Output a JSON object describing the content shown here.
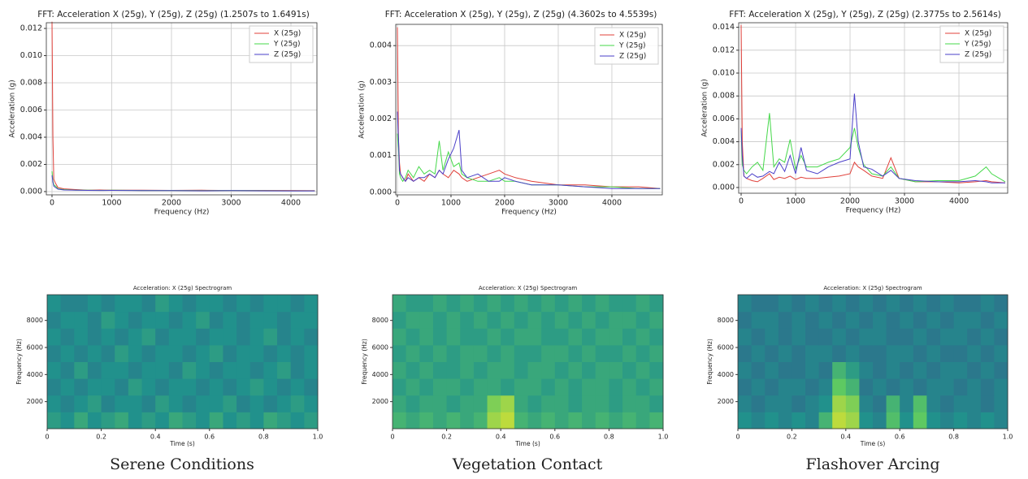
{
  "chart_data": [
    {
      "type": "line",
      "title": "FFT: Acceleration X (25g), Y (25g), Z (25g) (1.2507s to 1.6491s)",
      "xlabel": "Frequency (Hz)",
      "ylabel": "Acceleration (g)",
      "x": [
        0,
        15,
        30,
        60,
        100,
        200,
        400,
        600,
        800,
        1000,
        1500,
        2000,
        2500,
        3000,
        3500,
        4000,
        4400
      ],
      "series": [
        {
          "name": "X (25g)",
          "color": "#e0403a",
          "values": [
            0.0125,
            0.004,
            0.0009,
            0.0006,
            0.0003,
            0.0002,
            0.00015,
            0.0001,
            0.00012,
            0.0001,
            0.0001,
            9e-05,
            0.0001,
            8e-05,
            9e-05,
            8e-05,
            7e-05
          ]
        },
        {
          "name": "Y (25g)",
          "color": "#45d84a",
          "values": [
            0.0015,
            0.0008,
            0.0005,
            0.0004,
            0.0002,
            0.00015,
            0.0001,
            0.0001,
            9e-05,
            0.0001,
            8e-05,
            8e-05,
            7e-05,
            8e-05,
            7e-05,
            6e-05,
            6e-05
          ]
        },
        {
          "name": "Z (25g)",
          "color": "#4a3fc8",
          "values": [
            0.0012,
            0.0007,
            0.0004,
            0.0003,
            0.00018,
            0.00012,
            0.0001,
            9e-05,
            8e-05,
            9e-05,
            7e-05,
            7e-05,
            6e-05,
            7e-05,
            6e-05,
            5e-05,
            5e-05
          ]
        }
      ],
      "xlim": [
        -95,
        4435
      ],
      "xticks": [
        0,
        1000,
        2000,
        3000,
        4000
      ],
      "ylim": [
        -0.00024,
        0.01242
      ],
      "yticks": [
        {
          "value": 0,
          "label": "0.000"
        },
        0.002,
        0.004,
        0.006,
        0.008,
        {
          "value": 0.01,
          "label": "0.010"
        },
        0.012
      ],
      "grid": true,
      "legend": "upper right"
    },
    {
      "type": "line",
      "title": "FFT: Acceleration X (25g), Y (25g), Z (25g) (4.3602s to 4.5539s)",
      "xlabel": "Frequency (Hz)",
      "ylabel": "Acceleration (g)",
      "x": [
        0,
        20,
        40,
        60,
        100,
        150,
        200,
        300,
        400,
        500,
        600,
        700,
        780,
        850,
        950,
        1050,
        1150,
        1200,
        1300,
        1500,
        1700,
        1900,
        2000,
        2200,
        2500,
        3000,
        3500,
        4000,
        4500,
        4900
      ],
      "series": [
        {
          "name": "X (25g)",
          "color": "#e0403a",
          "values": [
            0.0045,
            0.0015,
            0.0008,
            0.0005,
            0.0004,
            0.0003,
            0.0005,
            0.0003,
            0.0004,
            0.0003,
            0.0005,
            0.0004,
            0.0006,
            0.0005,
            0.0004,
            0.0006,
            0.0005,
            0.0004,
            0.0003,
            0.0004,
            0.0005,
            0.0006,
            0.0005,
            0.0004,
            0.0003,
            0.0002,
            0.0002,
            0.00015,
            0.00015,
            0.0001
          ]
        },
        {
          "name": "Y (25g)",
          "color": "#45d84a",
          "values": [
            0.0016,
            0.0012,
            0.0005,
            0.0004,
            0.0003,
            0.0004,
            0.0006,
            0.0004,
            0.0007,
            0.0005,
            0.0006,
            0.0005,
            0.0014,
            0.0006,
            0.0011,
            0.0007,
            0.0008,
            0.0005,
            0.0004,
            0.0003,
            0.0003,
            0.0004,
            0.0003,
            0.0003,
            0.0002,
            0.0002,
            0.00015,
            0.00015,
            0.0001,
            0.0001
          ]
        },
        {
          "name": "Z (25g)",
          "color": "#4a3fc8",
          "values": [
            0.0022,
            0.0015,
            0.0006,
            0.0005,
            0.0004,
            0.0003,
            0.0004,
            0.0003,
            0.0004,
            0.0004,
            0.0005,
            0.0004,
            0.0006,
            0.0005,
            0.0009,
            0.0012,
            0.0017,
            0.0006,
            0.0004,
            0.0005,
            0.0003,
            0.0003,
            0.0004,
            0.0003,
            0.0002,
            0.0002,
            0.00015,
            0.0001,
            0.0001,
            0.0001
          ]
        }
      ],
      "xlim": [
        -30,
        4940
      ],
      "xticks": [
        0,
        1000,
        2000,
        3000,
        4000
      ],
      "ylim": [
        -7e-05,
        0.00458
      ],
      "yticks": [
        {
          "value": 0,
          "label": "0.000"
        },
        0.001,
        0.002,
        0.003,
        0.004
      ],
      "grid": true,
      "legend": "upper right"
    },
    {
      "type": "line",
      "title": "FFT: Acceleration X (25g), Y (25g), Z (25g) (2.3775s to 2.5614s)",
      "xlabel": "Frequency (Hz)",
      "ylabel": "Acceleration (g)",
      "x": [
        0,
        20,
        50,
        100,
        200,
        300,
        400,
        520,
        600,
        700,
        800,
        900,
        1000,
        1100,
        1200,
        1400,
        1600,
        1800,
        2000,
        2080,
        2150,
        2250,
        2400,
        2600,
        2750,
        2900,
        3200,
        3600,
        4000,
        4300,
        4500,
        4600,
        4850
      ],
      "series": [
        {
          "name": "X (25g)",
          "color": "#e0403a",
          "values": [
            0.0142,
            0.004,
            0.001,
            0.0008,
            0.0006,
            0.0005,
            0.0008,
            0.0012,
            0.0007,
            0.0009,
            0.0008,
            0.001,
            0.0007,
            0.0009,
            0.0008,
            0.0008,
            0.0009,
            0.001,
            0.0012,
            0.0022,
            0.0018,
            0.0015,
            0.001,
            0.0008,
            0.0026,
            0.0008,
            0.0005,
            0.0005,
            0.0004,
            0.0005,
            0.0006,
            0.0005,
            0.0004
          ]
        },
        {
          "name": "Y (25g)",
          "color": "#45d84a",
          "values": [
            0.005,
            0.002,
            0.0015,
            0.0012,
            0.0018,
            0.0022,
            0.0015,
            0.0065,
            0.0018,
            0.0025,
            0.0022,
            0.0042,
            0.0016,
            0.0028,
            0.0018,
            0.0018,
            0.0022,
            0.0025,
            0.0035,
            0.0052,
            0.0035,
            0.002,
            0.0012,
            0.001,
            0.0018,
            0.0008,
            0.0005,
            0.0006,
            0.0006,
            0.001,
            0.0018,
            0.0012,
            0.0005
          ]
        },
        {
          "name": "Z (25g)",
          "color": "#4a3fc8",
          "values": [
            0.0052,
            0.0028,
            0.001,
            0.0008,
            0.0012,
            0.0009,
            0.001,
            0.0014,
            0.0012,
            0.0022,
            0.0014,
            0.0028,
            0.0012,
            0.0035,
            0.0015,
            0.0012,
            0.0018,
            0.0022,
            0.0025,
            0.0082,
            0.004,
            0.0018,
            0.0016,
            0.001,
            0.0015,
            0.0008,
            0.0006,
            0.0005,
            0.0005,
            0.0006,
            0.0005,
            0.0004,
            0.0004
          ]
        }
      ],
      "xlim": [
        -45,
        4895
      ],
      "xticks": [
        0,
        1000,
        2000,
        3000,
        4000
      ],
      "ylim": [
        -0.0005,
        0.0144
      ],
      "yticks": [
        {
          "value": 0,
          "label": "0.000"
        },
        0.002,
        0.004,
        0.006,
        0.008,
        {
          "value": 0.01,
          "label": "0.010"
        },
        0.012,
        0.014
      ],
      "grid": true,
      "legend": "upper right"
    },
    {
      "type": "heatmap",
      "title": "Acceleration: X (25g) Spectrogram",
      "xlabel": "Time (s)",
      "ylabel": "Frequency (Hz)",
      "colormap": "viridis",
      "xlim": [
        0,
        1
      ],
      "xticks": [
        0,
        0.2,
        0.4,
        0.6,
        0.8,
        {
          "value": 1,
          "label": "1.0"
        }
      ],
      "ylim": [
        0,
        9900
      ],
      "yticks": [
        2000,
        4000,
        6000,
        8000
      ],
      "z": [
        [
          0.55,
          0.5,
          0.6,
          0.5,
          0.55,
          0.6,
          0.5,
          0.55,
          0.5,
          0.6,
          0.55,
          0.5,
          0.6,
          0.5,
          0.55,
          0.5,
          0.6,
          0.55,
          0.5,
          0.55
        ],
        [
          0.5,
          0.45,
          0.5,
          0.55,
          0.45,
          0.5,
          0.5,
          0.45,
          0.55,
          0.5,
          0.45,
          0.5,
          0.5,
          0.55,
          0.45,
          0.5,
          0.45,
          0.5,
          0.55,
          0.5
        ],
        [
          0.45,
          0.5,
          0.45,
          0.5,
          0.5,
          0.45,
          0.55,
          0.5,
          0.45,
          0.5,
          0.5,
          0.45,
          0.5,
          0.45,
          0.5,
          0.55,
          0.5,
          0.45,
          0.5,
          0.45
        ],
        [
          0.5,
          0.45,
          0.55,
          0.45,
          0.5,
          0.5,
          0.45,
          0.5,
          0.5,
          0.45,
          0.55,
          0.5,
          0.45,
          0.5,
          0.5,
          0.45,
          0.5,
          0.55,
          0.45,
          0.5
        ],
        [
          0.45,
          0.5,
          0.45,
          0.5,
          0.45,
          0.55,
          0.5,
          0.45,
          0.5,
          0.5,
          0.45,
          0.5,
          0.55,
          0.45,
          0.5,
          0.5,
          0.45,
          0.5,
          0.45,
          0.5
        ],
        [
          0.5,
          0.45,
          0.5,
          0.45,
          0.5,
          0.45,
          0.5,
          0.55,
          0.45,
          0.5,
          0.5,
          0.45,
          0.5,
          0.5,
          0.45,
          0.5,
          0.55,
          0.45,
          0.5,
          0.45
        ],
        [
          0.45,
          0.5,
          0.5,
          0.45,
          0.55,
          0.5,
          0.45,
          0.5,
          0.5,
          0.45,
          0.5,
          0.55,
          0.45,
          0.5,
          0.45,
          0.5,
          0.5,
          0.45,
          0.5,
          0.5
        ],
        [
          0.5,
          0.45,
          0.45,
          0.5,
          0.45,
          0.5,
          0.5,
          0.45,
          0.55,
          0.5,
          0.45,
          0.5,
          0.5,
          0.45,
          0.5,
          0.45,
          0.5,
          0.5,
          0.45,
          0.5
        ]
      ]
    },
    {
      "type": "heatmap",
      "title": "Acceleration: X (25g) Spectrogram",
      "xlabel": "Time (s)",
      "ylabel": "Frequency (Hz)",
      "colormap": "viridis",
      "xlim": [
        0,
        1
      ],
      "xticks": [
        0,
        0.2,
        0.4,
        0.6,
        0.8,
        {
          "value": 1,
          "label": "1.0"
        }
      ],
      "ylim": [
        0,
        9900
      ],
      "yticks": [
        2000,
        4000,
        6000,
        8000
      ],
      "z": [
        [
          0.65,
          0.6,
          0.65,
          0.6,
          0.65,
          0.6,
          0.65,
          0.85,
          0.9,
          0.65,
          0.6,
          0.65,
          0.6,
          0.65,
          0.6,
          0.65,
          0.6,
          0.65,
          0.6,
          0.65
        ],
        [
          0.6,
          0.55,
          0.6,
          0.6,
          0.55,
          0.6,
          0.6,
          0.8,
          0.85,
          0.6,
          0.55,
          0.6,
          0.6,
          0.55,
          0.6,
          0.6,
          0.55,
          0.6,
          0.6,
          0.55
        ],
        [
          0.55,
          0.6,
          0.55,
          0.6,
          0.6,
          0.55,
          0.6,
          0.6,
          0.55,
          0.6,
          0.6,
          0.55,
          0.6,
          0.55,
          0.6,
          0.6,
          0.55,
          0.6,
          0.55,
          0.6
        ],
        [
          0.6,
          0.55,
          0.6,
          0.55,
          0.55,
          0.6,
          0.55,
          0.6,
          0.6,
          0.55,
          0.6,
          0.6,
          0.55,
          0.6,
          0.55,
          0.6,
          0.6,
          0.55,
          0.6,
          0.55
        ],
        [
          0.55,
          0.6,
          0.55,
          0.6,
          0.55,
          0.6,
          0.6,
          0.55,
          0.6,
          0.55,
          0.55,
          0.6,
          0.6,
          0.55,
          0.6,
          0.55,
          0.55,
          0.6,
          0.55,
          0.6
        ],
        [
          0.6,
          0.55,
          0.6,
          0.55,
          0.6,
          0.55,
          0.55,
          0.6,
          0.55,
          0.6,
          0.6,
          0.55,
          0.55,
          0.6,
          0.55,
          0.6,
          0.6,
          0.55,
          0.6,
          0.55
        ],
        [
          0.55,
          0.6,
          0.6,
          0.55,
          0.6,
          0.55,
          0.6,
          0.55,
          0.6,
          0.55,
          0.6,
          0.55,
          0.6,
          0.55,
          0.6,
          0.55,
          0.6,
          0.6,
          0.55,
          0.6
        ],
        [
          0.6,
          0.55,
          0.55,
          0.6,
          0.55,
          0.6,
          0.55,
          0.6,
          0.55,
          0.6,
          0.55,
          0.6,
          0.55,
          0.6,
          0.55,
          0.6,
          0.55,
          0.55,
          0.6,
          0.55
        ]
      ]
    },
    {
      "type": "heatmap",
      "title": "Acceleration: X (25g) Spectrogram",
      "xlabel": "Time (s)",
      "ylabel": "Frequency (Hz)",
      "colormap": "viridis",
      "xlim": [
        0,
        1
      ],
      "xticks": [
        0,
        0.2,
        0.4,
        0.6,
        0.8,
        {
          "value": 1,
          "label": "1.0"
        }
      ],
      "ylim": [
        0,
        9900
      ],
      "yticks": [
        2000,
        4000,
        6000,
        8000
      ],
      "z": [
        [
          0.5,
          0.45,
          0.5,
          0.45,
          0.5,
          0.45,
          0.65,
          0.9,
          0.85,
          0.5,
          0.45,
          0.7,
          0.5,
          0.75,
          0.5,
          0.45,
          0.5,
          0.45,
          0.5,
          0.45
        ],
        [
          0.45,
          0.4,
          0.45,
          0.45,
          0.4,
          0.45,
          0.5,
          0.85,
          0.8,
          0.45,
          0.4,
          0.65,
          0.45,
          0.7,
          0.45,
          0.4,
          0.45,
          0.45,
          0.4,
          0.45
        ],
        [
          0.4,
          0.45,
          0.4,
          0.45,
          0.45,
          0.4,
          0.45,
          0.75,
          0.65,
          0.4,
          0.45,
          0.4,
          0.45,
          0.4,
          0.45,
          0.45,
          0.4,
          0.45,
          0.4,
          0.45
        ],
        [
          0.45,
          0.4,
          0.45,
          0.4,
          0.4,
          0.45,
          0.4,
          0.65,
          0.55,
          0.45,
          0.4,
          0.45,
          0.4,
          0.45,
          0.4,
          0.45,
          0.45,
          0.4,
          0.45,
          0.4
        ],
        [
          0.4,
          0.45,
          0.4,
          0.45,
          0.4,
          0.45,
          0.45,
          0.4,
          0.45,
          0.4,
          0.4,
          0.45,
          0.45,
          0.4,
          0.45,
          0.4,
          0.4,
          0.45,
          0.4,
          0.45
        ],
        [
          0.45,
          0.4,
          0.45,
          0.4,
          0.45,
          0.4,
          0.4,
          0.45,
          0.4,
          0.45,
          0.45,
          0.4,
          0.4,
          0.45,
          0.4,
          0.45,
          0.45,
          0.4,
          0.45,
          0.4
        ],
        [
          0.4,
          0.45,
          0.45,
          0.4,
          0.45,
          0.4,
          0.45,
          0.4,
          0.45,
          0.4,
          0.45,
          0.4,
          0.45,
          0.4,
          0.45,
          0.4,
          0.45,
          0.45,
          0.4,
          0.45
        ],
        [
          0.45,
          0.4,
          0.4,
          0.45,
          0.4,
          0.45,
          0.4,
          0.45,
          0.4,
          0.45,
          0.4,
          0.45,
          0.4,
          0.45,
          0.4,
          0.45,
          0.4,
          0.4,
          0.45,
          0.4
        ]
      ]
    }
  ],
  "captions": [
    "Serene Conditions",
    "Vegetation Contact",
    "Flashover Arcing"
  ]
}
